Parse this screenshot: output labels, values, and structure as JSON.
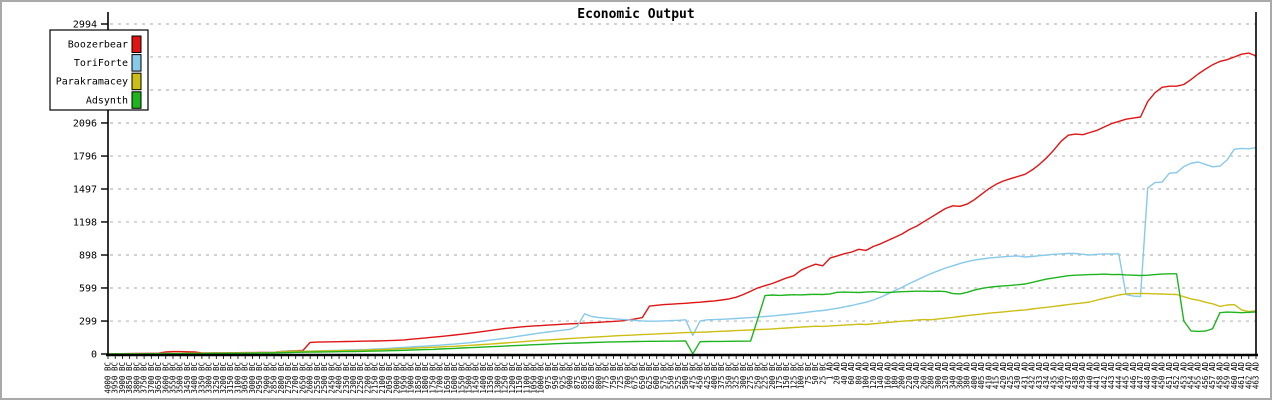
{
  "chart_data": {
    "type": "line",
    "title": "Economic Output",
    "xlabel": "",
    "ylabel": "",
    "ylim": [
      0,
      2994
    ],
    "y_ticks": [
      0,
      299,
      599,
      898,
      1198,
      1497,
      1796,
      2096,
      2395,
      2695,
      2994
    ],
    "grid": true,
    "legend_position": "top-left",
    "axis_color": "#000000",
    "grid_color": "#b8b8b8",
    "x": [
      "4000 BC",
      "3950 BC",
      "3900 BC",
      "3850 BC",
      "3800 BC",
      "3750 BC",
      "3700 BC",
      "3650 BC",
      "3600 BC",
      "3550 BC",
      "3500 BC",
      "3450 BC",
      "3400 BC",
      "3350 BC",
      "3300 BC",
      "3250 BC",
      "3200 BC",
      "3150 BC",
      "3100 BC",
      "3050 BC",
      "3000 BC",
      "2950 BC",
      "2900 BC",
      "2850 BC",
      "2800 BC",
      "2750 BC",
      "2700 BC",
      "2650 BC",
      "2600 BC",
      "2550 BC",
      "2500 BC",
      "2450 BC",
      "2400 BC",
      "2350 BC",
      "2300 BC",
      "2250 BC",
      "2200 BC",
      "2150 BC",
      "2100 BC",
      "2050 BC",
      "2000 BC",
      "1950 BC",
      "1900 BC",
      "1850 BC",
      "1800 BC",
      "1750 BC",
      "1700 BC",
      "1650 BC",
      "1600 BC",
      "1550 BC",
      "1500 BC",
      "1450 BC",
      "1400 BC",
      "1350 BC",
      "1300 BC",
      "1250 BC",
      "1200 BC",
      "1150 BC",
      "1100 BC",
      "1050 BC",
      "1000 BC",
      "975 BC",
      "950 BC",
      "925 BC",
      "900 BC",
      "875 BC",
      "850 BC",
      "825 BC",
      "800 BC",
      "775 BC",
      "750 BC",
      "725 BC",
      "700 BC",
      "675 BC",
      "650 BC",
      "625 BC",
      "600 BC",
      "575 BC",
      "550 BC",
      "525 BC",
      "500 BC",
      "475 BC",
      "450 BC",
      "425 BC",
      "400 BC",
      "375 BC",
      "350 BC",
      "325 BC",
      "300 BC",
      "275 BC",
      "250 BC",
      "225 BC",
      "200 BC",
      "175 BC",
      "150 BC",
      "125 BC",
      "100 BC",
      "75 BC",
      "50 BC",
      "25 BC",
      "1 AD",
      "20 AD",
      "40 AD",
      "60 AD",
      "80 AD",
      "100 AD",
      "120 AD",
      "140 AD",
      "160 AD",
      "180 AD",
      "200 AD",
      "220 AD",
      "240 AD",
      "260 AD",
      "280 AD",
      "300 AD",
      "320 AD",
      "340 AD",
      "360 AD",
      "380 AD",
      "400 AD",
      "405 AD",
      "410 AD",
      "415 AD",
      "420 AD",
      "425 AD",
      "430 AD",
      "431 AD",
      "432 AD",
      "433 AD",
      "434 AD",
      "435 AD",
      "436 AD",
      "437 AD",
      "438 AD",
      "439 AD",
      "440 AD",
      "441 AD",
      "442 AD",
      "443 AD",
      "444 AD",
      "445 AD",
      "446 AD",
      "447 AD",
      "448 AD",
      "449 AD",
      "450 AD",
      "451 AD",
      "452 AD",
      "453 AD",
      "454 AD",
      "455 AD",
      "456 AD",
      "457 AD",
      "458 AD",
      "459 AD",
      "460 AD",
      "461 AD",
      "462 AD",
      "463 AD"
    ],
    "series": [
      {
        "name": "Boozerbear",
        "color": "#e01414",
        "values": [
          2,
          3,
          3,
          4,
          5,
          5,
          6,
          7,
          18,
          22,
          22,
          20,
          18,
          10,
          10,
          11,
          11,
          12,
          12,
          13,
          13,
          14,
          14,
          15,
          24,
          28,
          30,
          32,
          105,
          108,
          110,
          111,
          112,
          113,
          114,
          116,
          117,
          118,
          120,
          122,
          124,
          128,
          134,
          140,
          146,
          152,
          158,
          165,
          172,
          180,
          188,
          196,
          205,
          214,
          223,
          232,
          238,
          244,
          250,
          255,
          258,
          262,
          266,
          270,
          274,
          277,
          280,
          284,
          288,
          292,
          296,
          300,
          308,
          318,
          330,
          435,
          442,
          448,
          452,
          456,
          460,
          465,
          470,
          476,
          482,
          490,
          500,
          515,
          540,
          570,
          600,
          620,
          640,
          665,
          690,
          710,
          760,
          790,
          815,
          800,
          870,
          890,
          910,
          925,
          950,
          940,
          975,
          1000,
          1030,
          1060,
          1090,
          1130,
          1160,
          1200,
          1240,
          1280,
          1320,
          1345,
          1340,
          1360,
          1400,
          1450,
          1500,
          1540,
          1570,
          1590,
          1610,
          1630,
          1670,
          1720,
          1780,
          1850,
          1930,
          1985,
          1995,
          1990,
          2010,
          2030,
          2060,
          2090,
          2110,
          2130,
          2140,
          2150,
          2290,
          2370,
          2420,
          2430,
          2430,
          2445,
          2490,
          2540,
          2585,
          2625,
          2655,
          2670,
          2695,
          2720,
          2730,
          2705
        ]
      },
      {
        "name": "ToriForte",
        "color": "#87c9e8",
        "values": [
          1,
          1,
          2,
          2,
          3,
          3,
          4,
          4,
          5,
          5,
          6,
          6,
          7,
          7,
          8,
          8,
          9,
          9,
          10,
          10,
          11,
          12,
          13,
          15,
          22,
          26,
          28,
          25,
          26,
          28,
          30,
          32,
          34,
          36,
          38,
          40,
          42,
          45,
          48,
          52,
          56,
          60,
          64,
          68,
          72,
          76,
          80,
          85,
          90,
          96,
          102,
          110,
          118,
          126,
          134,
          142,
          152,
          162,
          172,
          182,
          192,
          200,
          208,
          216,
          224,
          250,
          365,
          340,
          330,
          325,
          320,
          315,
          310,
          305,
          300,
          298,
          298,
          300,
          303,
          306,
          310,
          170,
          300,
          310,
          312,
          315,
          318,
          322,
          326,
          330,
          335,
          340,
          346,
          352,
          358,
          365,
          372,
          380,
          388,
          395,
          405,
          415,
          428,
          440,
          455,
          470,
          490,
          515,
          545,
          575,
          605,
          640,
          670,
          700,
          730,
          755,
          780,
          800,
          820,
          838,
          852,
          862,
          870,
          876,
          882,
          886,
          890,
          880,
          885,
          892,
          898,
          905,
          908,
          912,
          912,
          905,
          898,
          905,
          908,
          908,
          908,
          540,
          525,
          522,
          1505,
          1555,
          1560,
          1640,
          1645,
          1700,
          1730,
          1742,
          1720,
          1698,
          1705,
          1760,
          1858,
          1865,
          1862,
          1872
        ]
      },
      {
        "name": "Parakramacey",
        "color": "#ccbe14",
        "values": [
          0,
          1,
          1,
          2,
          2,
          3,
          3,
          4,
          4,
          5,
          5,
          6,
          6,
          7,
          7,
          8,
          8,
          9,
          9,
          10,
          10,
          11,
          12,
          14,
          20,
          24,
          26,
          24,
          25,
          26,
          28,
          29,
          30,
          32,
          33,
          34,
          36,
          38,
          40,
          43,
          46,
          49,
          52,
          55,
          58,
          61,
          64,
          67,
          70,
          74,
          78,
          82,
          86,
          90,
          95,
          100,
          105,
          110,
          115,
          120,
          125,
          128,
          132,
          136,
          140,
          144,
          148,
          152,
          156,
          160,
          164,
          167,
          170,
          173,
          176,
          179,
          182,
          185,
          188,
          191,
          194,
          196,
          198,
          200,
          203,
          206,
          209,
          212,
          215,
          218,
          221,
          224,
          228,
          232,
          236,
          240,
          244,
          248,
          252,
          250,
          255,
          258,
          262,
          266,
          270,
          268,
          274,
          280,
          286,
          292,
          298,
          302,
          308,
          312,
          310,
          318,
          325,
          332,
          340,
          348,
          356,
          362,
          370,
          376,
          382,
          388,
          395,
          400,
          408,
          416,
          424,
          432,
          440,
          448,
          456,
          464,
          472,
          490,
          505,
          520,
          535,
          545,
          548,
          550,
          548,
          546,
          544,
          542,
          540,
          520,
          500,
          488,
          470,
          455,
          432,
          445,
          448,
          400,
          385,
          392
        ]
      },
      {
        "name": "Adsynth",
        "color": "#1eb41e",
        "values": [
          0,
          0,
          1,
          1,
          1,
          2,
          2,
          2,
          3,
          3,
          3,
          4,
          4,
          4,
          5,
          5,
          5,
          6,
          6,
          6,
          7,
          8,
          9,
          10,
          12,
          14,
          15,
          16,
          17,
          18,
          19,
          20,
          21,
          22,
          23,
          24,
          25,
          26,
          28,
          30,
          32,
          34,
          36,
          38,
          40,
          42,
          45,
          48,
          51,
          54,
          57,
          60,
          63,
          66,
          69,
          72,
          75,
          78,
          81,
          84,
          87,
          90,
          93,
          96,
          98,
          100,
          102,
          104,
          106,
          108,
          110,
          111,
          112,
          113,
          114,
          115,
          115,
          116,
          116,
          117,
          118,
          2,
          112,
          113,
          114,
          114,
          115,
          116,
          116,
          117,
          320,
          530,
          535,
          532,
          535,
          538,
          536,
          540,
          542,
          540,
          545,
          560,
          562,
          560,
          558,
          562,
          565,
          560,
          558,
          562,
          565,
          568,
          570,
          570,
          568,
          570,
          566,
          548,
          545,
          560,
          580,
          595,
          605,
          612,
          618,
          622,
          628,
          635,
          650,
          665,
          680,
          690,
          700,
          710,
          715,
          718,
          720,
          722,
          725,
          720,
          722,
          718,
          715,
          712,
          715,
          720,
          725,
          728,
          728,
          300,
          210,
          205,
          208,
          230,
          375,
          380,
          378,
          375,
          378,
          382
        ]
      }
    ]
  }
}
